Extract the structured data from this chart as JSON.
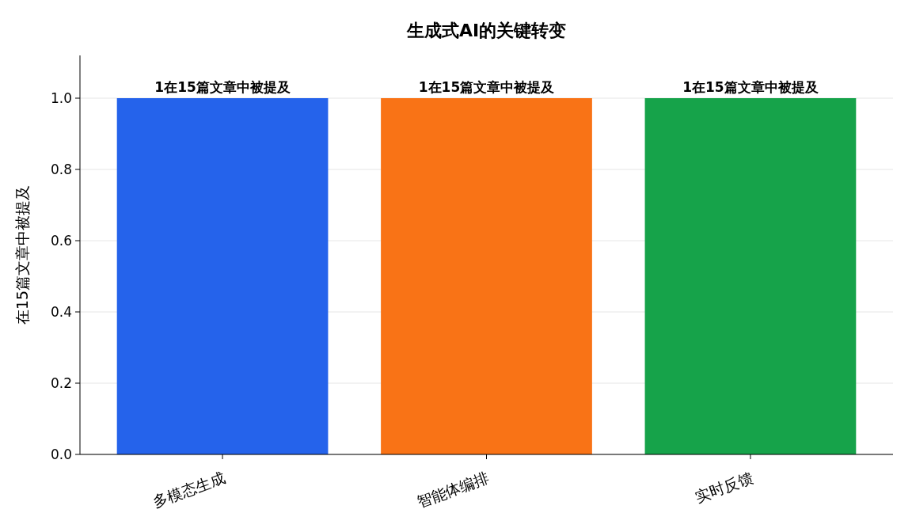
{
  "chart_data": {
    "type": "bar",
    "title": "生成式AI的关键转变",
    "ylabel": "在15篇文章中被提及",
    "categories": [
      "多模态生成",
      "智能体编排",
      "实时反馈"
    ],
    "values": [
      1,
      1,
      1
    ],
    "colors": [
      "#2563eb",
      "#f97316",
      "#16a34a"
    ],
    "value_labels": [
      "1在15篇文章中被提及",
      "1在15篇文章中被提及",
      "1在15篇文章中被提及"
    ],
    "ylim": [
      0,
      1.12
    ],
    "yticks": [
      {
        "value": 0,
        "label": "0.0"
      },
      {
        "value": 0.2,
        "label": "0.2"
      },
      {
        "value": 0.4,
        "label": "0.4"
      },
      {
        "value": 0.6,
        "label": "0.6"
      },
      {
        "value": 0.8,
        "label": "0.8"
      },
      {
        "value": 1,
        "label": "1.0"
      }
    ],
    "grid": "y"
  }
}
